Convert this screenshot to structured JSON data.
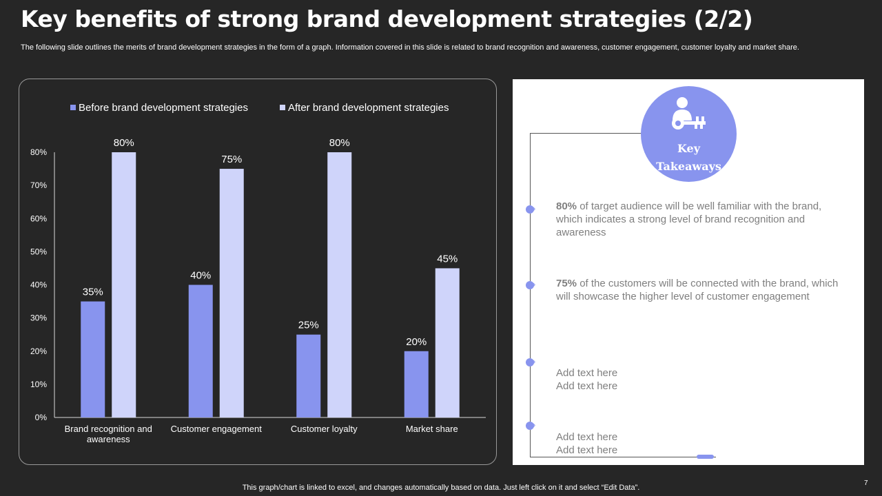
{
  "slide": {
    "title": "Key benefits of strong brand development strategies (2/2)",
    "subtitle": "The following slide outlines the merits of brand development strategies in the form of a graph. Information covered in this slide is related to brand recognition and awareness, customer engagement, customer loyalty and market share.",
    "footer": "This graph/chart is linked to excel, and changes automatically based on data. Just left click on it and select “Edit Data”.",
    "page_number": "7"
  },
  "colors": {
    "background": "#262626",
    "before": "#8894ee",
    "after": "#cfd4fa",
    "accent": "#8894ee"
  },
  "chart_data": {
    "type": "bar",
    "categories": [
      "Brand recognition and awareness",
      "Customer engagement",
      "Customer loyalty",
      "Market share"
    ],
    "category_lines": [
      [
        "Brand recognition and",
        "awareness"
      ],
      [
        "Customer engagement"
      ],
      [
        "Customer loyalty"
      ],
      [
        "Market share"
      ]
    ],
    "series": [
      {
        "name": "Before brand development strategies",
        "values": [
          35,
          40,
          25,
          20
        ],
        "color": "#8894ee"
      },
      {
        "name": "After brand development strategies",
        "values": [
          80,
          75,
          80,
          45
        ],
        "color": "#cfd4fa"
      }
    ],
    "ylim": [
      0,
      80
    ],
    "yticks": [
      0,
      10,
      20,
      30,
      40,
      50,
      60,
      70,
      80
    ],
    "value_suffix": "%",
    "legend": "top",
    "grid": false
  },
  "takeaways": {
    "badge_line1": "Key",
    "badge_line2": "Takeaways",
    "badge_icon": "user-key-icon",
    "items": [
      {
        "bold": "80%",
        "text": " of target audience will be well familiar with the brand, which indicates a strong level of brand recognition and awareness"
      },
      {
        "bold": "75%",
        "text": " of the customers will be connected with the brand, which will showcase the higher level of customer engagement"
      },
      {
        "bold": "",
        "text": "Add text here\nAdd text here"
      },
      {
        "bold": "",
        "text": "Add text here\nAdd text here"
      }
    ]
  }
}
